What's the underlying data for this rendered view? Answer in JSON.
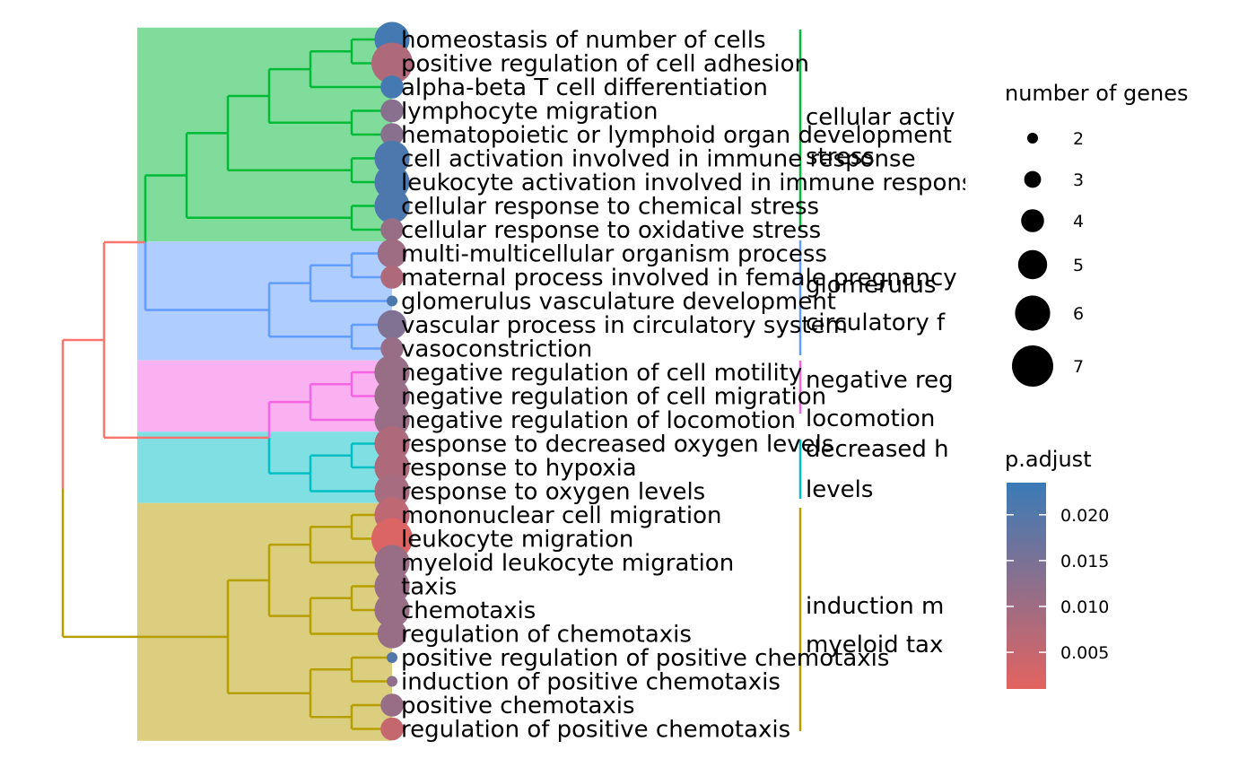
{
  "chart_data": {
    "type": "treeplot",
    "title": "",
    "terms": [
      {
        "label": "homeostasis of number of cells",
        "count": 6,
        "p_adjust": 0.022,
        "cluster": 0
      },
      {
        "label": "positive regulation of cell adhesion",
        "count": 7,
        "p_adjust": 0.008,
        "cluster": 0
      },
      {
        "label": "alpha-beta T cell differentiation",
        "count": 4,
        "p_adjust": 0.022,
        "cluster": 0
      },
      {
        "label": "lymphocyte migration",
        "count": 4,
        "p_adjust": 0.013,
        "cluster": 0
      },
      {
        "label": "hematopoietic or lymphoid organ development",
        "count": 4,
        "p_adjust": 0.013,
        "cluster": 0
      },
      {
        "label": "cell activation involved in immune response",
        "count": 6,
        "p_adjust": 0.021,
        "cluster": 0
      },
      {
        "label": "leukocyte activation involved in immune response",
        "count": 6,
        "p_adjust": 0.021,
        "cluster": 0
      },
      {
        "label": "cellular response to chemical stress",
        "count": 6,
        "p_adjust": 0.021,
        "cluster": 0
      },
      {
        "label": "cellular response to oxidative stress",
        "count": 4,
        "p_adjust": 0.011,
        "cluster": 0
      },
      {
        "label": "multi-multicellular organism process",
        "count": 5,
        "p_adjust": 0.01,
        "cluster": 1
      },
      {
        "label": "maternal process involved in female pregnancy",
        "count": 4,
        "p_adjust": 0.008,
        "cluster": 1
      },
      {
        "label": "glomerulus vasculature development",
        "count": 2,
        "p_adjust": 0.021,
        "cluster": 1
      },
      {
        "label": "vascular process in circulatory system",
        "count": 5,
        "p_adjust": 0.014,
        "cluster": 1
      },
      {
        "label": "vasoconstriction",
        "count": 4,
        "p_adjust": 0.011,
        "cluster": 1
      },
      {
        "label": "negative regulation of cell motility",
        "count": 6,
        "p_adjust": 0.011,
        "cluster": 2
      },
      {
        "label": "negative regulation of cell migration",
        "count": 6,
        "p_adjust": 0.011,
        "cluster": 2
      },
      {
        "label": "negative regulation of locomotion",
        "count": 6,
        "p_adjust": 0.011,
        "cluster": 2
      },
      {
        "label": "response to decreased oxygen levels",
        "count": 6,
        "p_adjust": 0.008,
        "cluster": 3
      },
      {
        "label": "response to hypoxia",
        "count": 6,
        "p_adjust": 0.008,
        "cluster": 3
      },
      {
        "label": "response to oxygen levels",
        "count": 6,
        "p_adjust": 0.009,
        "cluster": 3
      },
      {
        "label": "mononuclear cell migration",
        "count": 6,
        "p_adjust": 0.006,
        "cluster": 4
      },
      {
        "label": "leukocyte migration",
        "count": 7,
        "p_adjust": 0.002,
        "cluster": 4
      },
      {
        "label": "myeloid leukocyte migration",
        "count": 6,
        "p_adjust": 0.011,
        "cluster": 4
      },
      {
        "label": "taxis",
        "count": 6,
        "p_adjust": 0.011,
        "cluster": 4
      },
      {
        "label": "chemotaxis",
        "count": 6,
        "p_adjust": 0.011,
        "cluster": 4
      },
      {
        "label": "regulation of chemotaxis",
        "count": 5,
        "p_adjust": 0.011,
        "cluster": 4
      },
      {
        "label": "positive regulation of positive chemotaxis",
        "count": 2,
        "p_adjust": 0.02,
        "cluster": 4
      },
      {
        "label": "induction of positive chemotaxis",
        "count": 2,
        "p_adjust": 0.012,
        "cluster": 4
      },
      {
        "label": "positive chemotaxis",
        "count": 4,
        "p_adjust": 0.011,
        "cluster": 4
      },
      {
        "label": "regulation of positive chemotaxis",
        "count": 4,
        "p_adjust": 0.005,
        "cluster": 4
      }
    ],
    "clusters": [
      {
        "color": "#00BA38",
        "fill": "#7FDC9B",
        "labels": [
          "cellular activ",
          "stress"
        ]
      },
      {
        "color": "#619CFF",
        "fill": "#B0CDFF",
        "labels": [
          "glomerulus",
          "circulatory f"
        ]
      },
      {
        "color": "#F564E3",
        "fill": "#FAB1F1",
        "labels": [
          "negative reg",
          "locomotion"
        ]
      },
      {
        "color": "#00BFC4",
        "fill": "#80DFE2",
        "labels": [
          "decreased h",
          "levels"
        ]
      },
      {
        "color": "#B79F00",
        "fill": "#DBCE7F",
        "labels": [
          "induction m",
          "myeloid tax"
        ]
      }
    ],
    "root_color": "#F8766D",
    "legend_size": {
      "title": "number of genes",
      "entries": [
        {
          "label": "2",
          "value": 2
        },
        {
          "label": "3",
          "value": 3
        },
        {
          "label": "4",
          "value": 4
        },
        {
          "label": "5",
          "value": 5
        },
        {
          "label": "6",
          "value": 6
        },
        {
          "label": "7",
          "value": 7
        }
      ]
    },
    "legend_color": {
      "title": "p.adjust",
      "low_color": "#E36360",
      "high_color": "#3A7BB7",
      "range": [
        0.001,
        0.0235
      ],
      "ticks": [
        {
          "label": "0.020",
          "value": 0.02
        },
        {
          "label": "0.015",
          "value": 0.015
        },
        {
          "label": "0.010",
          "value": 0.01
        },
        {
          "label": "0.005",
          "value": 0.005
        }
      ]
    }
  }
}
